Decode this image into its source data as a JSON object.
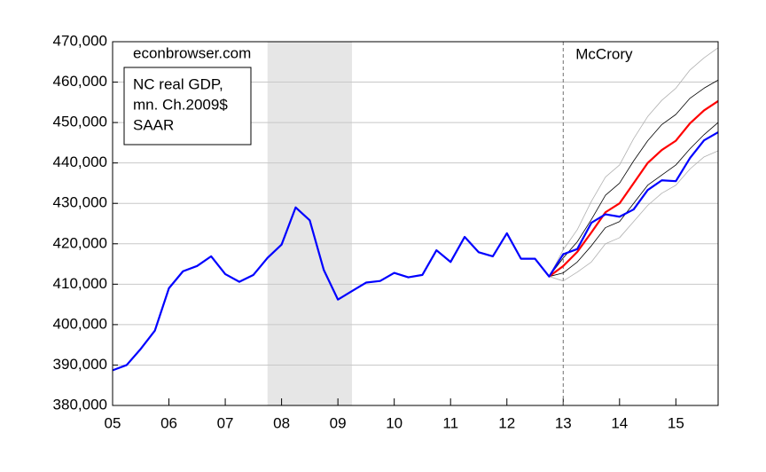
{
  "chart_data": {
    "type": "line",
    "watermark": "econbrowser.com",
    "text_box": [
      "NC real GDP,",
      "mn. Ch.2009$",
      "SAAR"
    ],
    "event_label": "McCrory",
    "event_x": 2013,
    "shaded": [
      [
        2007.75,
        2009.25
      ]
    ],
    "x": [
      2005,
      2005.25,
      2005.5,
      2005.75,
      2006,
      2006.25,
      2006.5,
      2006.75,
      2007,
      2007.25,
      2007.5,
      2007.75,
      2008,
      2008.25,
      2008.5,
      2008.75,
      2009,
      2009.25,
      2009.5,
      2009.75,
      2010,
      2010.25,
      2010.5,
      2010.75,
      2011,
      2011.25,
      2011.5,
      2011.75,
      2012,
      2012.25,
      2012.5,
      2012.75,
      2013,
      2013.25,
      2013.5,
      2013.75,
      2014,
      2014.25,
      2014.5,
      2014.75,
      2015,
      2015.25,
      2015.5,
      2015.75
    ],
    "series": [
      {
        "color": "#b0b0b0",
        "width": 0.8,
        "values": [
          null,
          null,
          null,
          null,
          null,
          null,
          null,
          null,
          null,
          null,
          null,
          null,
          null,
          null,
          null,
          null,
          null,
          null,
          null,
          null,
          null,
          null,
          null,
          null,
          null,
          null,
          null,
          null,
          null,
          null,
          null,
          411900,
          418500,
          423500,
          430500,
          436500,
          439500,
          446000,
          451500,
          455500,
          458500,
          463000,
          466000,
          468500
        ]
      },
      {
        "color": "#b0b0b0",
        "width": 0.8,
        "values": [
          null,
          null,
          null,
          null,
          null,
          null,
          null,
          null,
          null,
          null,
          null,
          null,
          null,
          null,
          null,
          null,
          null,
          null,
          null,
          null,
          null,
          null,
          null,
          null,
          null,
          null,
          null,
          null,
          null,
          null,
          null,
          411900,
          410800,
          413000,
          415500,
          420000,
          421500,
          425500,
          429500,
          432500,
          434500,
          438500,
          441500,
          443000
        ]
      },
      {
        "color": "#000000",
        "width": 0.8,
        "values": [
          null,
          null,
          null,
          null,
          null,
          null,
          null,
          null,
          null,
          null,
          null,
          null,
          null,
          null,
          null,
          null,
          null,
          null,
          null,
          null,
          null,
          null,
          null,
          null,
          null,
          null,
          null,
          null,
          null,
          null,
          null,
          411900,
          416500,
          420500,
          426000,
          432000,
          435000,
          440500,
          445500,
          449500,
          452000,
          456000,
          458500,
          460500
        ]
      },
      {
        "color": "#000000",
        "width": 0.8,
        "values": [
          null,
          null,
          null,
          null,
          null,
          null,
          null,
          null,
          null,
          null,
          null,
          null,
          null,
          null,
          null,
          null,
          null,
          null,
          null,
          null,
          null,
          null,
          null,
          null,
          null,
          null,
          null,
          null,
          null,
          null,
          null,
          411900,
          412800,
          415500,
          419500,
          424000,
          425500,
          430000,
          434500,
          437000,
          439500,
          443500,
          447000,
          450000
        ]
      },
      {
        "color": "#ff0000",
        "width": 2.2,
        "values": [
          null,
          null,
          null,
          null,
          null,
          null,
          null,
          null,
          null,
          null,
          null,
          null,
          null,
          null,
          null,
          null,
          null,
          null,
          null,
          null,
          null,
          null,
          null,
          null,
          null,
          null,
          null,
          null,
          null,
          null,
          null,
          411900,
          414500,
          418000,
          422800,
          427800,
          430000,
          435000,
          440000,
          443200,
          445500,
          449800,
          453000,
          455300
        ]
      },
      {
        "color": "#0000ff",
        "width": 2.2,
        "values": [
          388700,
          390000,
          394000,
          398500,
          409000,
          413200,
          414500,
          416900,
          412500,
          410600,
          412300,
          416500,
          419800,
          429000,
          425800,
          413500,
          406200,
          408300,
          410400,
          410800,
          412800,
          411700,
          412300,
          418400,
          415500,
          421700,
          417900,
          416900,
          422600,
          416300,
          416300,
          411900,
          417400,
          418700,
          425200,
          427300,
          426700,
          428500,
          433300,
          435700,
          435500,
          441200,
          445600,
          447600
        ]
      }
    ],
    "xlim": [
      2005,
      2015.75
    ],
    "xticks": [
      {
        "value": 2005,
        "label": "05"
      },
      {
        "value": 2006,
        "label": "06"
      },
      {
        "value": 2007,
        "label": "07"
      },
      {
        "value": 2008,
        "label": "08"
      },
      {
        "value": 2009,
        "label": "09"
      },
      {
        "value": 2010,
        "label": "10"
      },
      {
        "value": 2011,
        "label": "11"
      },
      {
        "value": 2012,
        "label": "12"
      },
      {
        "value": 2013,
        "label": "13"
      },
      {
        "value": 2014,
        "label": "14"
      },
      {
        "value": 2015,
        "label": "15"
      }
    ],
    "ylim": [
      380000,
      470000
    ],
    "yticks": [
      {
        "value": 380000,
        "label": "380,000"
      },
      {
        "value": 390000,
        "label": "390,000"
      },
      {
        "value": 400000,
        "label": "400,000"
      },
      {
        "value": 410000,
        "label": "410,000"
      },
      {
        "value": 420000,
        "label": "420,000"
      },
      {
        "value": 430000,
        "label": "430,000"
      },
      {
        "value": 440000,
        "label": "440,000"
      },
      {
        "value": 450000,
        "label": "450,000"
      },
      {
        "value": 460000,
        "label": "460,000"
      },
      {
        "value": 470000,
        "label": "470,000"
      }
    ],
    "grid": true
  }
}
